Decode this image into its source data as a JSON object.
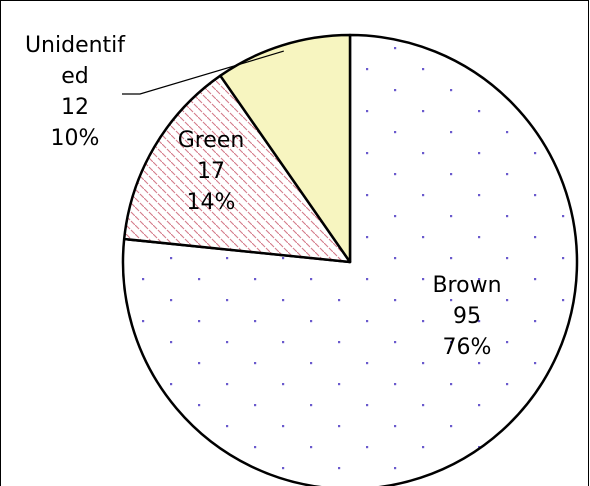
{
  "chart_data": {
    "type": "pie",
    "start_angle_deg": 0,
    "direction": "clockwise",
    "slices": [
      {
        "label": "Brown",
        "value": 95,
        "percent": "76%",
        "fill": "#ffffff",
        "pattern": "dots",
        "pattern_color": "#6a5acd"
      },
      {
        "label": "Green",
        "value": 17,
        "percent": "14%",
        "fill": "#ffffff",
        "pattern": "diagonal-dashes",
        "pattern_color": "#d47b8a"
      },
      {
        "label": "Unidentified",
        "label_lines": [
          "Unidentif",
          "ed"
        ],
        "value": 12,
        "percent": "10%",
        "fill": "#f7f5c0",
        "pattern": "none"
      }
    ],
    "legend": "none",
    "border_color": "#000000"
  }
}
